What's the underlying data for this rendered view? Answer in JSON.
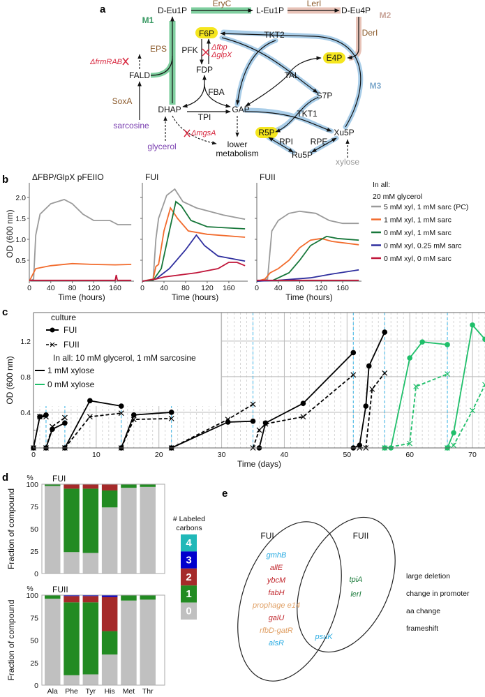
{
  "panel_a": {
    "label": "a",
    "nodes": {
      "deu1p": "D-Eu1P",
      "leu1p": "L-Eu1P",
      "deu4p": "D-Eu4P",
      "f6p": "F6P",
      "e4p": "E4P",
      "fdp": "FDP",
      "fald": "FALD",
      "s7p": "S7P",
      "dhap": "DHAP",
      "gap": "GAP",
      "r5p": "R5P",
      "xu5p": "Xu5P",
      "ru5p": "Ru5P",
      "lower1": "lower",
      "lower2": "metabolism",
      "sarcosine": "sarcosine",
      "glycerol": "glycerol",
      "xylose": "xylose"
    },
    "enzymes": {
      "eryc": "EryC",
      "leri": "LerI",
      "deri": "DerI",
      "eps": "EPS",
      "soxa": "SoxA",
      "pfk": "PFK",
      "fba": "FBA",
      "tpi": "TPI",
      "tkt2": "TKT2",
      "tal": "TAL",
      "tkt1": "TKT1",
      "rpi": "RPI",
      "rpe": "RPE"
    },
    "modules": {
      "m1": "M1",
      "m2": "M2",
      "m3": "M3"
    },
    "deletions": {
      "frmrab": "ΔfrmRAB",
      "fbp": "Δfbp",
      "glpx": "ΔglpX",
      "mgsa": "ΔmgsA"
    },
    "colors": {
      "m1": "#7fcf9f",
      "m2": "#e8c3b8",
      "m3": "#a9cde8",
      "highlight": "#f5e61e"
    }
  },
  "panel_b": {
    "label": "b",
    "ylabel": "OD (600 nm)",
    "legend_header": [
      "In all:",
      "20 mM glycerol"
    ]
  },
  "panel_c": {
    "label": "c"
  },
  "panel_d": {
    "label": "d",
    "legend_title": [
      "# Labeled",
      "carbons"
    ]
  },
  "panel_e": {
    "label": "e",
    "sets": [
      "FUI",
      "FUII"
    ],
    "fui_only": [
      {
        "g": "gmhB",
        "c": "promoter"
      },
      {
        "g": "allE",
        "c": "frameshift"
      },
      {
        "g": "ybcM",
        "c": "frameshift"
      },
      {
        "g": "fabH",
        "c": "frameshift"
      },
      {
        "g": "prophage e14",
        "c": "deletion"
      },
      {
        "g": "galU",
        "c": "frameshift"
      },
      {
        "g": "rfbD-gatR",
        "c": "deletion"
      },
      {
        "g": "alsR",
        "c": "promoter"
      }
    ],
    "shared": [
      {
        "g": "psuK",
        "c": "promoter"
      }
    ],
    "fuii_only": [
      {
        "g": "tpiA",
        "c": "aa"
      },
      {
        "g": "lerI",
        "c": "aa"
      }
    ],
    "legend": [
      {
        "key": "deletion",
        "label": "large deletion",
        "color": "#e0a065"
      },
      {
        "key": "promoter",
        "label": "change in promoter",
        "color": "#29abe2"
      },
      {
        "key": "aa",
        "label": "aa change",
        "color": "#1a7a3a"
      },
      {
        "key": "frameshift",
        "label": "frameshift",
        "color": "#c1272d"
      }
    ]
  },
  "chart_data": [
    {
      "type": "line",
      "id": "b1",
      "title": "ΔFBP/GlpX pFEIIO",
      "xlabel": "Time (hours)",
      "ylabel": "OD (600 nm)",
      "xlim": [
        0,
        195
      ],
      "ylim": [
        0,
        2.35
      ],
      "xticks": [
        0,
        40,
        80,
        120,
        160
      ],
      "yticks": [
        0.5,
        1.0,
        1.5,
        2.0
      ],
      "series": [
        {
          "name": "5 mM xyl, 1 mM sarc (PC)",
          "color": "#9a9a9a",
          "x": [
            0,
            8,
            12,
            20,
            40,
            65,
            80,
            100,
            120,
            150,
            165,
            190
          ],
          "y": [
            0,
            0.05,
            1.1,
            1.6,
            1.85,
            1.95,
            1.85,
            1.6,
            1.45,
            1.45,
            1.35,
            1.35
          ]
        },
        {
          "name": "1 mM xyl, 1 mM sarc",
          "color": "#f26b2c",
          "x": [
            0,
            8,
            12,
            40,
            80,
            120,
            160,
            190
          ],
          "y": [
            0,
            0.2,
            0.3,
            0.37,
            0.42,
            0.4,
            0.39,
            0.4
          ]
        },
        {
          "name": "0 mM xyl, 0 mM sarc",
          "color": "#c0163a",
          "x": [
            0,
            160,
            162,
            164,
            190
          ],
          "y": [
            0.02,
            0.02,
            0.15,
            0.02,
            0.02
          ]
        }
      ]
    },
    {
      "type": "line",
      "id": "b2",
      "title": "FUI",
      "xlabel": "Time (hours)",
      "xlim": [
        0,
        195
      ],
      "ylim": [
        0,
        2.35
      ],
      "xticks": [
        0,
        40,
        80,
        120,
        160
      ],
      "yticks": [
        0.5,
        1.0,
        1.5,
        2.0
      ],
      "series": [
        {
          "name": "5 mM xyl, 1 mM sarc (PC)",
          "color": "#9a9a9a",
          "x": [
            0,
            20,
            25,
            30,
            45,
            60,
            75,
            100,
            150,
            190
          ],
          "y": [
            0,
            0.05,
            1.0,
            1.5,
            2.05,
            2.2,
            1.9,
            1.75,
            1.58,
            1.48
          ]
        },
        {
          "name": "1 mM xyl, 1 mM sarc",
          "color": "#f26b2c",
          "x": [
            0,
            20,
            25,
            30,
            40,
            52,
            65,
            85,
            120,
            190
          ],
          "y": [
            0,
            0.05,
            0.35,
            0.4,
            1.2,
            1.75,
            1.5,
            1.2,
            1.12,
            1.05
          ]
        },
        {
          "name": "0 mM xyl, 1 mM sarc",
          "color": "#17773a",
          "x": [
            0,
            20,
            35,
            50,
            62,
            72,
            90,
            120,
            190
          ],
          "y": [
            0,
            0.02,
            0.3,
            1.2,
            1.9,
            1.8,
            1.45,
            1.3,
            1.25
          ]
        },
        {
          "name": "0 mM xyl, 0.25 mM sarc",
          "color": "#2e2e9e",
          "x": [
            0,
            25,
            50,
            80,
            100,
            115,
            140,
            190
          ],
          "y": [
            0,
            0.05,
            0.3,
            0.75,
            1.1,
            0.85,
            0.6,
            0.48
          ]
        },
        {
          "name": "0 mM xyl, 0 mM sarc",
          "color": "#c0163a",
          "x": [
            0,
            25,
            40,
            100,
            140,
            160,
            175,
            190
          ],
          "y": [
            0,
            0.05,
            0.1,
            0.2,
            0.3,
            0.45,
            0.45,
            0.37
          ]
        }
      ]
    },
    {
      "type": "line",
      "id": "b3",
      "title": "FUII",
      "xlabel": "Time (hours)",
      "xlim": [
        0,
        195
      ],
      "ylim": [
        0,
        2.35
      ],
      "xticks": [
        0,
        40,
        80,
        120,
        160
      ],
      "yticks": [
        0.5,
        1.0,
        1.5,
        2.0
      ],
      "series": [
        {
          "name": "5 mM xyl, 1 mM sarc (PC)",
          "color": "#9a9a9a",
          "x": [
            0,
            20,
            28,
            40,
            60,
            80,
            110,
            135,
            160,
            190
          ],
          "y": [
            0,
            0.05,
            1.2,
            1.45,
            1.62,
            1.67,
            1.62,
            1.45,
            1.38,
            1.38
          ]
        },
        {
          "name": "1 mM xyl, 1 mM sarc",
          "color": "#f26b2c",
          "x": [
            0,
            15,
            25,
            40,
            60,
            80,
            100,
            120,
            140,
            190
          ],
          "y": [
            0,
            0.05,
            0.2,
            0.3,
            0.5,
            0.8,
            0.98,
            1.02,
            0.95,
            0.87
          ]
        },
        {
          "name": "0 mM xyl, 1 mM sarc",
          "color": "#17773a",
          "x": [
            0,
            30,
            60,
            80,
            100,
            130,
            150,
            190
          ],
          "y": [
            0,
            0.02,
            0.2,
            0.5,
            0.85,
            1.07,
            1.02,
            0.98
          ]
        },
        {
          "name": "0 mM xyl, 0.25 mM sarc",
          "color": "#2e2e9e",
          "x": [
            0,
            40,
            100,
            140,
            190
          ],
          "y": [
            0,
            0.02,
            0.08,
            0.17,
            0.27
          ]
        },
        {
          "name": "0 mM xyl, 0 mM sarc",
          "color": "#c0163a",
          "x": [
            0,
            190
          ],
          "y": [
            0.02,
            0.02
          ]
        }
      ]
    },
    {
      "type": "line",
      "id": "c",
      "xlabel": "Time (days)",
      "ylabel": "OD (600 nm)",
      "xlim": [
        0,
        72
      ],
      "ylim": [
        0,
        1.52
      ],
      "xticks": [
        0,
        10,
        20,
        30,
        40,
        50,
        60,
        70
      ],
      "yticks": [
        0.4,
        0.8,
        1.2
      ],
      "transfer_days": [
        2,
        5,
        14,
        22,
        35,
        51,
        56,
        66
      ],
      "legend": {
        "title": "culture",
        "fui": "FUI",
        "fuii": "FUII",
        "note": "In all: 10 mM glycerol, 1 mM sarcosine",
        "xyl1": "1 mM xylose",
        "xyl0": "0 mM xylose"
      },
      "series": [
        {
          "culture": "FUI",
          "xylose": "1 mM",
          "color": "#000000",
          "segments": [
            [
              [
                0,
                0
              ],
              [
                1,
                0.35
              ],
              [
                2,
                0.37
              ]
            ],
            [
              [
                2,
                0
              ],
              [
                3,
                0.21
              ],
              [
                5,
                0.28
              ]
            ],
            [
              [
                5,
                0
              ],
              [
                9,
                0.53
              ],
              [
                14,
                0.47
              ]
            ],
            [
              [
                14,
                0
              ],
              [
                16,
                0.37
              ],
              [
                22,
                0.4
              ]
            ],
            [
              [
                22,
                0
              ],
              [
                31,
                0.29
              ],
              [
                35,
                0.3
              ]
            ],
            [
              [
                36,
                0
              ],
              [
                37,
                0.28
              ],
              [
                43,
                0.5
              ],
              [
                51,
                1.07
              ]
            ],
            [
              [
                51,
                0
              ],
              [
                52,
                0.03
              ],
              [
                53,
                0.47
              ],
              [
                53.5,
                0.92
              ],
              [
                56,
                1.3
              ]
            ]
          ]
        },
        {
          "culture": "FUII",
          "xylose": "1 mM",
          "color": "#000000",
          "segments": [
            [
              [
                0,
                0
              ],
              [
                1,
                0.35
              ],
              [
                2,
                0.35
              ]
            ],
            [
              [
                2,
                0
              ],
              [
                3,
                0.24
              ],
              [
                5,
                0.34
              ]
            ],
            [
              [
                5,
                0
              ],
              [
                9,
                0.35
              ],
              [
                14,
                0.39
              ]
            ],
            [
              [
                14,
                0
              ],
              [
                16,
                0.32
              ],
              [
                22,
                0.33
              ]
            ],
            [
              [
                22,
                0
              ],
              [
                31,
                0.32
              ],
              [
                35,
                0.49
              ]
            ],
            [
              [
                35,
                0
              ],
              [
                36,
                0.2
              ],
              [
                37,
                0.27
              ],
              [
                43,
                0.35
              ],
              [
                51,
                0.82
              ]
            ],
            [
              [
                52,
                0
              ],
              [
                53,
                0
              ],
              [
                54,
                0.66
              ],
              [
                56,
                0.84
              ]
            ]
          ]
        },
        {
          "culture": "FUI",
          "xylose": "0 mM",
          "color": "#1fbf6a",
          "segments": [
            [
              [
                56,
                0
              ],
              [
                57,
                0
              ],
              [
                60,
                1.01
              ],
              [
                62,
                1.19
              ],
              [
                66,
                1.16
              ]
            ],
            [
              [
                66,
                0
              ],
              [
                67,
                0.17
              ],
              [
                70,
                1.38
              ],
              [
                72,
                1.22
              ]
            ]
          ]
        },
        {
          "culture": "FUII",
          "xylose": "0 mM",
          "color": "#1fbf6a",
          "segments": [
            [
              [
                56,
                0
              ],
              [
                60,
                0.05
              ],
              [
                61,
                0.69
              ],
              [
                66,
                0.83
              ]
            ],
            [
              [
                66,
                0
              ],
              [
                67,
                0.03
              ],
              [
                70,
                0.42
              ],
              [
                72,
                0.71
              ]
            ]
          ]
        }
      ]
    },
    {
      "type": "bar",
      "id": "d1",
      "title": "FUI",
      "ylabel": "Fraction of compound",
      "yunit": "%",
      "ylim": [
        0,
        100
      ],
      "yticks": [
        0,
        25,
        50,
        75,
        100
      ],
      "categories": [
        "Ala",
        "Phe",
        "Tyr",
        "His",
        "Met",
        "Thr"
      ],
      "stack_labels": [
        "0",
        "1",
        "2",
        "3",
        "4"
      ],
      "colors": [
        "#c0c0c0",
        "#228b22",
        "#a52a2a",
        "#0000cd",
        "#20b8b8"
      ],
      "values": [
        [
          98,
          2,
          0,
          0,
          0
        ],
        [
          24,
          71,
          5,
          0,
          0
        ],
        [
          23,
          72,
          5,
          0,
          0
        ],
        [
          74,
          19,
          7,
          0,
          0
        ],
        [
          96,
          4,
          0,
          0,
          0
        ],
        [
          97,
          3,
          0,
          0,
          0
        ]
      ]
    },
    {
      "type": "bar",
      "id": "d2",
      "title": "FUII",
      "ylabel": "Fraction of compound",
      "yunit": "%",
      "ylim": [
        0,
        100
      ],
      "yticks": [
        0,
        25,
        50,
        75,
        100
      ],
      "categories": [
        "Ala",
        "Phe",
        "Tyr",
        "His",
        "Met",
        "Thr"
      ],
      "stack_labels": [
        "0",
        "1",
        "2",
        "3",
        "4"
      ],
      "colors": [
        "#c0c0c0",
        "#228b22",
        "#a52a2a",
        "#0000cd",
        "#20b8b8"
      ],
      "values": [
        [
          96,
          4,
          0,
          0,
          0
        ],
        [
          11,
          81,
          7,
          1,
          0
        ],
        [
          12,
          80,
          7,
          1,
          0
        ],
        [
          34,
          26,
          38,
          2,
          0
        ],
        [
          94,
          6,
          0,
          0,
          0
        ],
        [
          95,
          5,
          0,
          0,
          0
        ]
      ]
    }
  ]
}
